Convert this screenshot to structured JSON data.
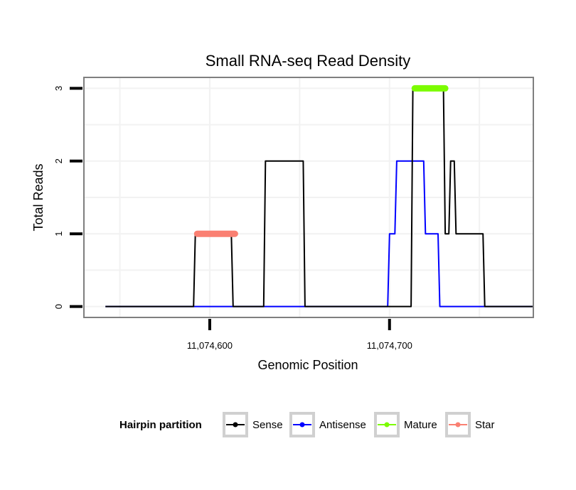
{
  "chart_data": {
    "type": "line",
    "title": "Small RNA-seq Read Density",
    "xlabel": "Genomic Position",
    "ylabel": "Total Reads",
    "xlim": [
      11074530,
      11074780
    ],
    "ylim": [
      -0.15,
      3.15
    ],
    "x_ticks": [
      11074600,
      11074700
    ],
    "x_tick_labels": [
      "11,074,600",
      "11,074,700"
    ],
    "y_ticks": [
      0,
      1,
      2,
      3
    ],
    "y_tick_labels": [
      "0",
      "1",
      "2",
      "3"
    ],
    "grid": true,
    "legend_position": "bottom",
    "legend_title": "Hairpin partition",
    "series": [
      {
        "name": "Sense",
        "color": "#000000",
        "kind": "line",
        "x": [
          11074542,
          11074591,
          11074592,
          11074612,
          11074613,
          11074630,
          11074631,
          11074652,
          11074653,
          11074712,
          11074713,
          11074730,
          11074731,
          11074733,
          11074734,
          11074736,
          11074737,
          11074738,
          11074739,
          11074752,
          11074753,
          11074780
        ],
        "y": [
          0,
          0,
          1,
          1,
          0,
          0,
          2,
          2,
          0,
          0,
          3,
          3,
          1,
          1,
          2,
          2,
          1,
          1,
          1,
          1,
          0,
          0
        ]
      },
      {
        "name": "Antisense",
        "color": "#0000ff",
        "kind": "line",
        "x": [
          11074542,
          11074699,
          11074700,
          11074703,
          11074704,
          11074719,
          11074720,
          11074727,
          11074728,
          11074780
        ],
        "y": [
          0,
          0,
          1,
          1,
          2,
          2,
          1,
          1,
          0,
          0
        ]
      },
      {
        "name": "Mature",
        "color": "#7cfc00",
        "kind": "segment",
        "x": [
          11074714,
          11074731
        ],
        "y": [
          3,
          3
        ]
      },
      {
        "name": "Star",
        "color": "#fa8072",
        "kind": "segment",
        "x": [
          11074593,
          11074614
        ],
        "y": [
          1,
          1
        ]
      }
    ]
  }
}
